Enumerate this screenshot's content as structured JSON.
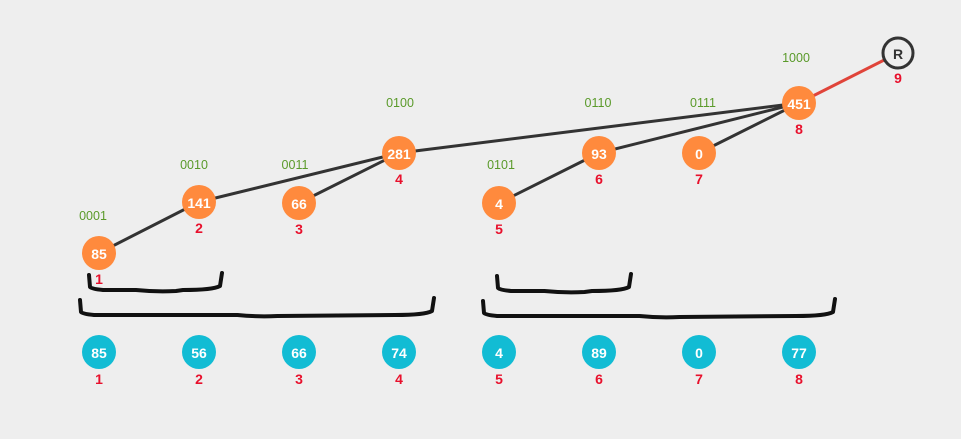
{
  "colors": {
    "background": "#eeeeee",
    "tree_node": "#ff8a3d",
    "array_node": "#12bcd4",
    "index_text": "#e8102c",
    "binary_text": "#5a9a2a",
    "edge": "#333333",
    "root_edge": "#e0443a",
    "bracket": "#111111"
  },
  "root": {
    "label": "R",
    "index": "9"
  },
  "tree_nodes": [
    {
      "value": "85",
      "index": "1",
      "binary": "0001"
    },
    {
      "value": "141",
      "index": "2",
      "binary": "0010"
    },
    {
      "value": "66",
      "index": "3",
      "binary": "0011"
    },
    {
      "value": "281",
      "index": "4",
      "binary": "0100"
    },
    {
      "value": "4",
      "index": "5",
      "binary": "0101"
    },
    {
      "value": "93",
      "index": "6",
      "binary": "0110"
    },
    {
      "value": "0",
      "index": "7",
      "binary": "0111"
    },
    {
      "value": "451",
      "index": "8",
      "binary": "1000"
    }
  ],
  "array_nodes": [
    {
      "value": "85",
      "index": "1"
    },
    {
      "value": "56",
      "index": "2"
    },
    {
      "value": "66",
      "index": "3"
    },
    {
      "value": "74",
      "index": "4"
    },
    {
      "value": "4",
      "index": "5"
    },
    {
      "value": "89",
      "index": "6"
    },
    {
      "value": "0",
      "index": "7"
    },
    {
      "value": "77",
      "index": "8"
    }
  ],
  "edges": [
    {
      "from": "1",
      "to": "2"
    },
    {
      "from": "2",
      "to": "4"
    },
    {
      "from": "3",
      "to": "4"
    },
    {
      "from": "4",
      "to": "8"
    },
    {
      "from": "5",
      "to": "6"
    },
    {
      "from": "6",
      "to": "8"
    },
    {
      "from": "7",
      "to": "8"
    },
    {
      "from": "8",
      "to": "R"
    }
  ],
  "brackets": [
    {
      "from_index": "1",
      "to_index": "2"
    },
    {
      "from_index": "1",
      "to_index": "4"
    },
    {
      "from_index": "5",
      "to_index": "6"
    },
    {
      "from_index": "5",
      "to_index": "8"
    }
  ]
}
